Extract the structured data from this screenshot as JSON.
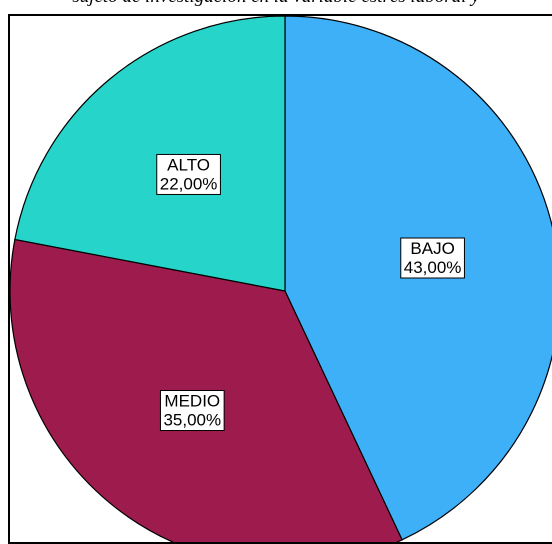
{
  "caption": "sujeto de investigación en la variable estrés laboral y",
  "chart_data": {
    "type": "pie",
    "start_angle_deg": 0,
    "direction": "clockwise",
    "slices": [
      {
        "label": "BAJO",
        "pct_text": "43,00%",
        "value": 43.0,
        "color": "#3EB0F7"
      },
      {
        "label": "MEDIO",
        "pct_text": "35,00%",
        "value": 35.0,
        "color": "#9E1C4D"
      },
      {
        "label": "ALTO",
        "pct_text": "22,00%",
        "value": 22.0,
        "color": "#27D4C9"
      }
    ],
    "legend": "none"
  }
}
